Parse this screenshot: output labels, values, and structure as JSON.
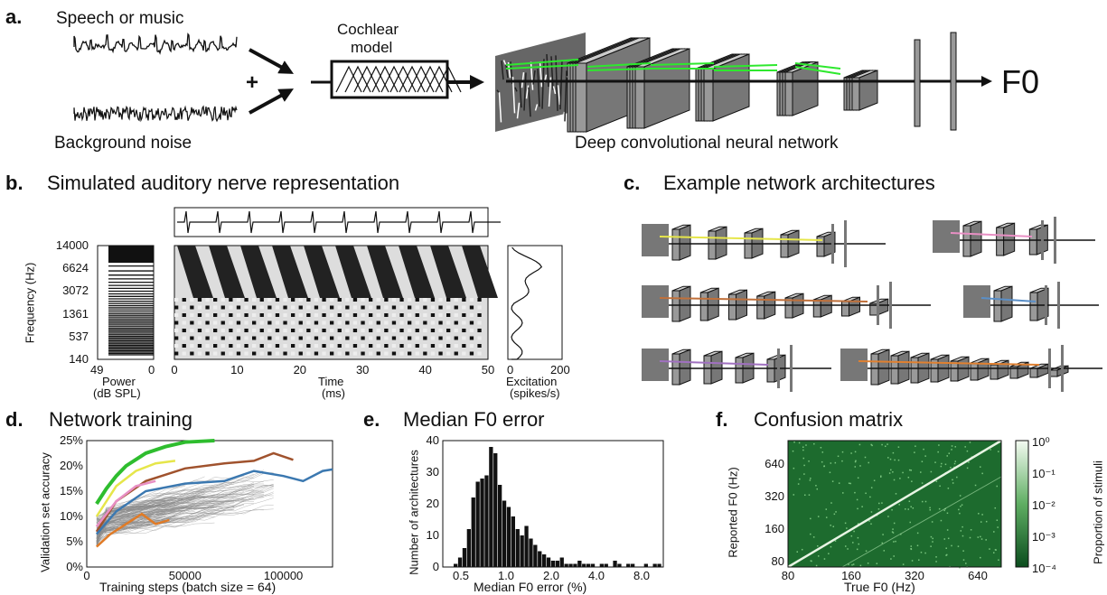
{
  "panel_a": {
    "letter": "a.",
    "speech_label": "Speech or music",
    "plus": "+",
    "noise_label": "Background noise",
    "cochlear_label_1": "Cochlear",
    "cochlear_label_2": "model",
    "output_label": "F0",
    "network_label": "Deep convolutional neural network"
  },
  "panel_b": {
    "letter": "b.",
    "title": "Simulated auditory nerve representation",
    "freq_axis_label": "Frequency (Hz)",
    "freq_ticks": [
      "14000",
      "6624",
      "3072",
      "1361",
      "537",
      "140"
    ],
    "power_ticks": [
      "49",
      "0"
    ],
    "power_label_1": "Power",
    "power_label_2": "(dB SPL)",
    "time_ticks": [
      "0",
      "10",
      "20",
      "30",
      "40",
      "50"
    ],
    "time_label_1": "Time",
    "time_label_2": "(ms)",
    "exc_ticks": [
      "0",
      "200"
    ],
    "exc_label_1": "Excitation",
    "exc_label_2": "(spikes/s)"
  },
  "panel_c": {
    "letter": "c.",
    "title": "Example network architectures",
    "arch_colors": [
      "#e6e64a",
      "#e88fc4",
      "#c0703a",
      "#5a8fc8",
      "#a070c0",
      "#e08030"
    ]
  },
  "panel_d": {
    "letter": "d.",
    "title": "Network training"
  },
  "panel_e": {
    "letter": "e.",
    "title": "Median F0 error"
  },
  "panel_f": {
    "letter": "f.",
    "title": "Confusion matrix",
    "colorbar_label": "Proportion of stimuli",
    "colorbar_ticks": [
      "10⁰",
      "10⁻¹",
      "10⁻²",
      "10⁻³",
      "10⁻⁴"
    ]
  },
  "chart_data": [
    {
      "id": "d",
      "type": "line",
      "xlabel": "Training steps (batch size = 64)",
      "ylabel": "Validation set accuracy",
      "xlim": [
        0,
        125000
      ],
      "ylim": [
        0,
        25
      ],
      "xticks": [
        "0",
        "50000",
        "100000"
      ],
      "yticks": [
        "0%",
        "5%",
        "10%",
        "15%",
        "20%",
        "25%"
      ],
      "series": [
        {
          "color": "#2ebd2e",
          "x": [
            5000,
            10000,
            15000,
            20000,
            30000,
            40000,
            50000,
            60000,
            65000
          ],
          "y": [
            12.5,
            15.5,
            18,
            20,
            22.5,
            23.8,
            24.7,
            24.9,
            25
          ]
        },
        {
          "color": "#a0522d",
          "x": [
            5000,
            15000,
            30000,
            50000,
            70000,
            85000,
            95000,
            105000
          ],
          "y": [
            7,
            13,
            17,
            19.5,
            20.5,
            21,
            22.5,
            21.2
          ]
        },
        {
          "color": "#3b78b0",
          "x": [
            5000,
            15000,
            30000,
            50000,
            70000,
            85000,
            100000,
            110000,
            120000,
            125000
          ],
          "y": [
            6.5,
            11,
            15,
            16.5,
            17,
            19,
            18,
            17,
            19,
            19.3
          ]
        },
        {
          "color": "#e6e64a",
          "x": [
            5000,
            15000,
            25000,
            35000,
            45000
          ],
          "y": [
            10,
            16,
            19,
            20.5,
            21
          ]
        },
        {
          "color": "#e88fc4",
          "x": [
            5000,
            15000,
            25000,
            35000
          ],
          "y": [
            8,
            13,
            16,
            17
          ]
        },
        {
          "color": "#e07b27",
          "x": [
            5000,
            12000,
            20000,
            28000,
            35000,
            42000
          ],
          "y": [
            4,
            6.5,
            8.5,
            10.5,
            8.5,
            9.3
          ]
        }
      ]
    },
    {
      "id": "e",
      "type": "bar",
      "xlabel": "Median F0 error (%)",
      "ylabel": "Number of architectures",
      "xticks": [
        "0.5",
        "1.0",
        "2.0",
        "4.0",
        "8.0"
      ],
      "yticks": [
        "0",
        "10",
        "20",
        "30",
        "40"
      ],
      "ylim": [
        0,
        40
      ],
      "values": [
        1,
        3,
        6,
        12,
        22,
        27,
        28,
        29,
        38,
        36,
        26,
        21,
        19,
        16,
        12,
        10,
        13,
        9,
        7,
        5,
        4,
        3,
        2,
        2,
        3,
        1,
        1,
        1,
        2,
        1,
        1,
        1,
        0,
        1,
        1,
        0,
        2,
        1,
        0,
        1,
        1,
        0,
        0,
        1,
        0,
        1,
        1
      ]
    },
    {
      "id": "f",
      "type": "heatmap",
      "xlabel": "True F0 (Hz)",
      "ylabel": "Reported F0 (Hz)",
      "xticks": [
        "80",
        "160",
        "320",
        "640"
      ],
      "yticks": [
        "640",
        "320",
        "160",
        "80"
      ]
    }
  ]
}
